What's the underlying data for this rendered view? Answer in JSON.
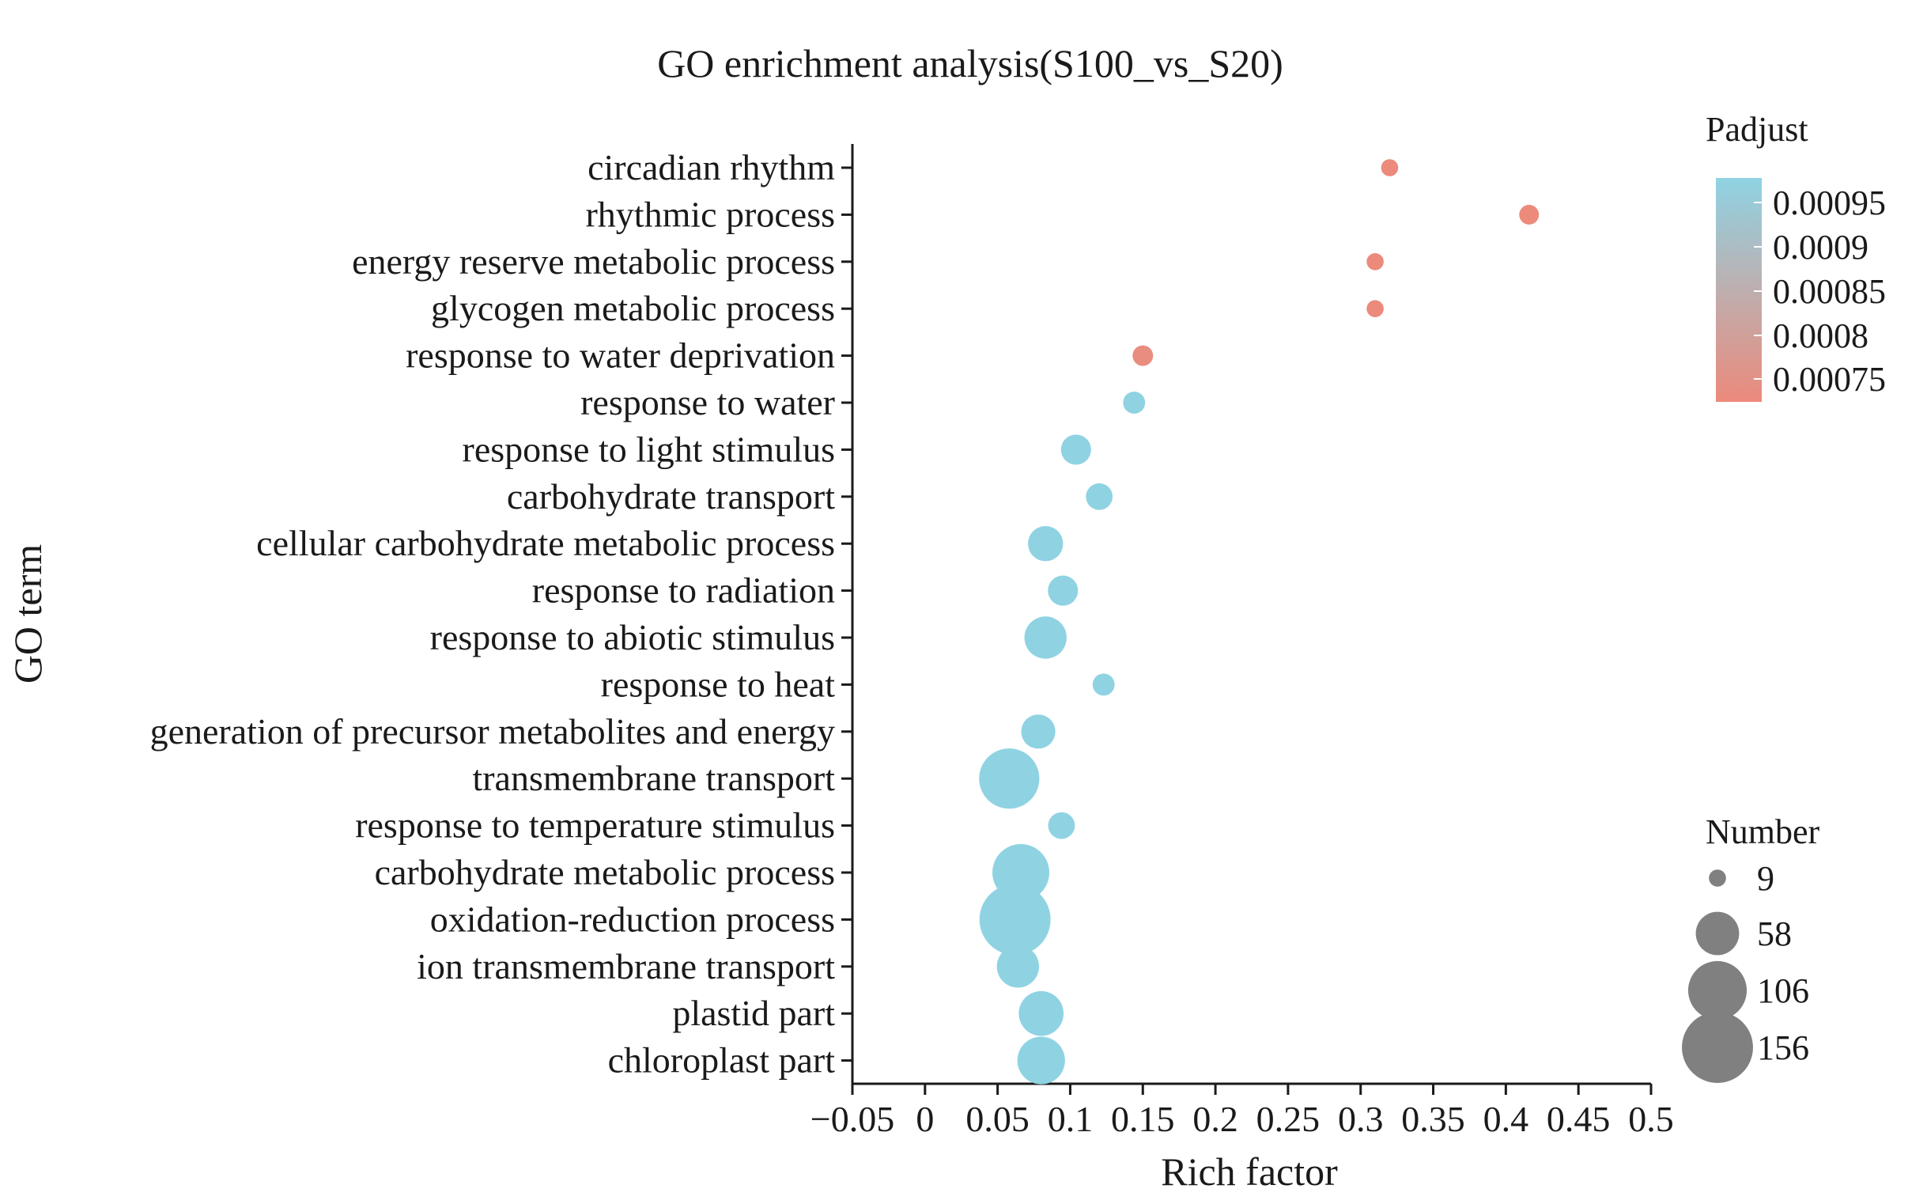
{
  "chart_data": {
    "type": "scatter",
    "title": "GO enrichment analysis(S100_vs_S20)",
    "xlabel": "Rich factor",
    "ylabel": "GO term",
    "xlim": [
      -0.05,
      0.5
    ],
    "xticks": [
      -0.05,
      0,
      0.05,
      0.1,
      0.15,
      0.2,
      0.25,
      0.3,
      0.35,
      0.4,
      0.45,
      0.5
    ],
    "xtick_labels": [
      "−0.05",
      "0",
      "0.05",
      "0.1",
      "0.15",
      "0.2",
      "0.25",
      "0.3",
      "0.35",
      "0.4",
      "0.45",
      "0.5"
    ],
    "categories": [
      "circadian rhythm",
      "rhythmic process",
      "energy reserve metabolic process",
      "glycogen metabolic process",
      "response to water deprivation",
      "response to water",
      "response to light stimulus",
      "carbohydrate transport",
      "cellular carbohydrate metabolic process",
      "response to radiation",
      "response to abiotic stimulus",
      "response to heat",
      "generation of precursor metabolites and energy",
      "transmembrane transport",
      "response to temperature stimulus",
      "carbohydrate metabolic process",
      "oxidation-reduction process",
      "ion transmembrane transport",
      "plastid part",
      "chloroplast part"
    ],
    "points": [
      {
        "term": "circadian rhythm",
        "rich_factor": 0.32,
        "number": 9,
        "padjust": 0.00072
      },
      {
        "term": "rhythmic process",
        "rich_factor": 0.416,
        "number": 12,
        "padjust": 0.00072
      },
      {
        "term": "energy reserve metabolic process",
        "rich_factor": 0.31,
        "number": 9,
        "padjust": 0.00072
      },
      {
        "term": "glycogen metabolic process",
        "rich_factor": 0.31,
        "number": 9,
        "padjust": 0.00072
      },
      {
        "term": "response to water deprivation",
        "rich_factor": 0.15,
        "number": 13,
        "padjust": 0.00073
      },
      {
        "term": "response to water",
        "rich_factor": 0.144,
        "number": 15,
        "padjust": 0.00098
      },
      {
        "term": "response to light stimulus",
        "rich_factor": 0.104,
        "number": 28,
        "padjust": 0.00098
      },
      {
        "term": "carbohydrate transport",
        "rich_factor": 0.12,
        "number": 22,
        "padjust": 0.00098
      },
      {
        "term": "cellular carbohydrate metabolic process",
        "rich_factor": 0.083,
        "number": 38,
        "padjust": 0.00098
      },
      {
        "term": "response to radiation",
        "rich_factor": 0.095,
        "number": 28,
        "padjust": 0.00098
      },
      {
        "term": "response to abiotic stimulus",
        "rich_factor": 0.083,
        "number": 55,
        "padjust": 0.00098
      },
      {
        "term": "response to heat",
        "rich_factor": 0.123,
        "number": 15,
        "padjust": 0.00098
      },
      {
        "term": "generation of precursor metabolites and energy",
        "rich_factor": 0.078,
        "number": 36,
        "padjust": 0.00098
      },
      {
        "term": "transmembrane transport",
        "rich_factor": 0.058,
        "number": 112,
        "padjust": 0.00098
      },
      {
        "term": "response to temperature stimulus",
        "rich_factor": 0.094,
        "number": 22,
        "padjust": 0.00098
      },
      {
        "term": "carbohydrate metabolic process",
        "rich_factor": 0.066,
        "number": 100,
        "padjust": 0.00098
      },
      {
        "term": "oxidation-reduction process",
        "rich_factor": 0.062,
        "number": 156,
        "padjust": 0.00098
      },
      {
        "term": "ion transmembrane transport",
        "rich_factor": 0.064,
        "number": 55,
        "padjust": 0.00098
      },
      {
        "term": "plastid part",
        "rich_factor": 0.08,
        "number": 62,
        "padjust": 0.00098
      },
      {
        "term": "chloroplast part",
        "rich_factor": 0.08,
        "number": 70,
        "padjust": 0.00098
      }
    ],
    "color_legend": {
      "title": "Padjust",
      "ticks": [
        0.00095,
        0.0009,
        0.00085,
        0.0008,
        0.00075
      ],
      "tick_labels": [
        "0.00095",
        "0.0009",
        "0.00085",
        "0.0008",
        "0.00075"
      ],
      "range": [
        0.00072,
        0.00098
      ],
      "high_color": "#8fd3e3",
      "low_color": "#ec8a7b"
    },
    "size_legend": {
      "title": "Number",
      "values": [
        9,
        58,
        106,
        156
      ],
      "labels": [
        "9",
        "58",
        "106",
        "156"
      ],
      "color": "#808080"
    },
    "grid": false
  }
}
